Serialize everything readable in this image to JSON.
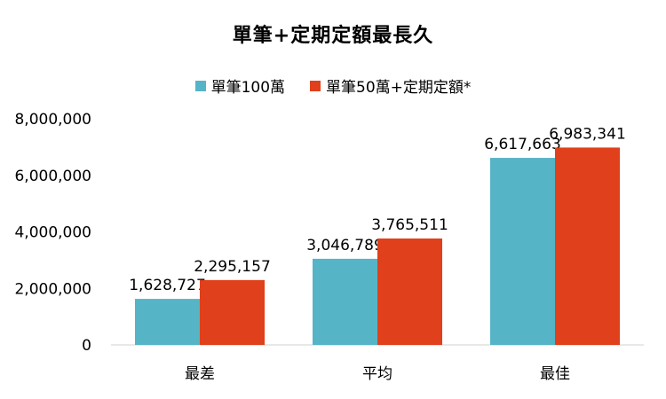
{
  "chart_data": {
    "type": "bar",
    "title": "單筆+定期定額最長久",
    "categories": [
      "最差",
      "平均",
      "最佳"
    ],
    "series": [
      {
        "name": "單筆100萬",
        "color": "#56B4C7",
        "values": [
          1628727,
          3046789,
          6617663
        ],
        "labels": [
          "1,628,727",
          "3,046,789",
          "6,617,663"
        ]
      },
      {
        "name": "單筆50萬+定期定額*",
        "color": "#E0401B",
        "values": [
          2295157,
          3765511,
          6983341
        ],
        "labels": [
          "2,295,157",
          "3,765,511",
          "6,983,341"
        ]
      }
    ],
    "yticks": [
      0,
      2000000,
      4000000,
      6000000,
      8000000
    ],
    "ytick_labels": [
      "0",
      "2,000,000",
      "4,000,000",
      "6,000,000",
      "8,000,000"
    ],
    "ylim": [
      0,
      8000000
    ],
    "legend": "top",
    "grid": false
  }
}
